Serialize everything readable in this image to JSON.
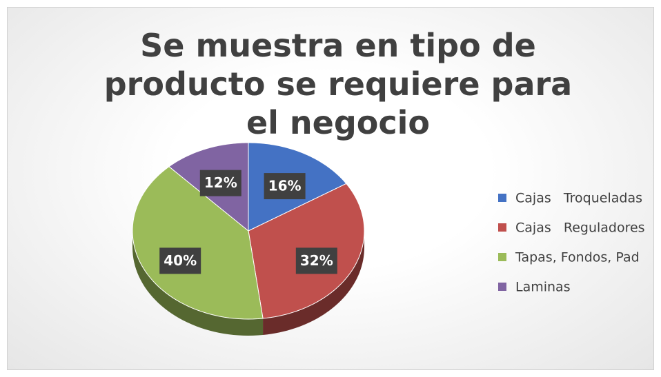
{
  "chart_data": {
    "type": "pie",
    "title": "Se muestra en tipo de producto se requiere para el negocio",
    "categories": [
      "Cajas   Troqueladas",
      "Cajas   Reguladores",
      "Tapas, Fondos, Pad",
      "Laminas"
    ],
    "values": [
      16,
      32,
      40,
      12
    ],
    "value_labels": [
      "16%",
      "32%",
      "40%",
      "12%"
    ],
    "colors": [
      "#4472c4",
      "#c0504d",
      "#9bbb59",
      "#8064a2"
    ],
    "legend": "right"
  }
}
